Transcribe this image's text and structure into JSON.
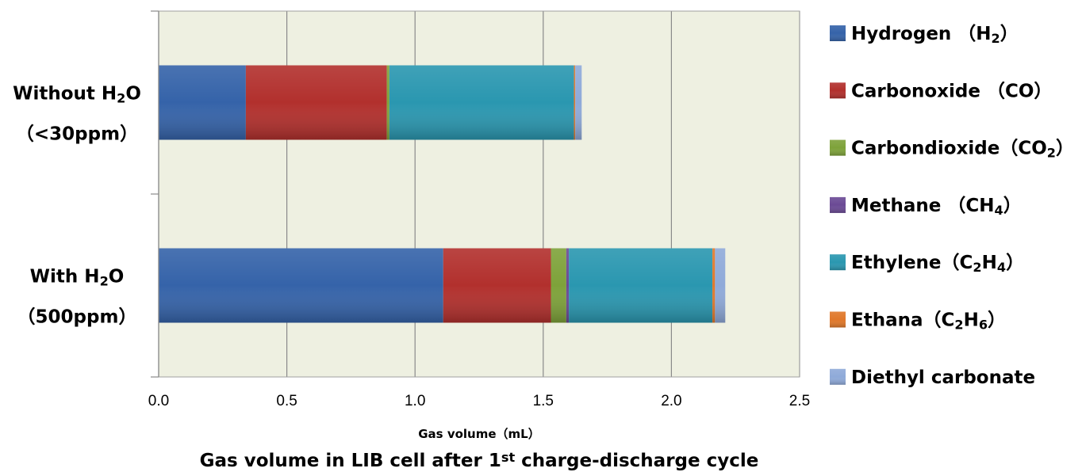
{
  "chart_data": {
    "type": "bar",
    "orientation": "horizontal",
    "stacked": true,
    "title": {
      "main": "Gas volume in LIB cell after 1",
      "sup": "st",
      "rest": " charge-discharge cycle"
    },
    "xlabel": "Gas volume（mL）",
    "xlim": [
      0,
      2.5
    ],
    "xticks": [
      0.0,
      0.5,
      1.0,
      1.5,
      2.0,
      2.5
    ],
    "xtick_labels": [
      "0.0",
      "0.5",
      "1.0",
      "1.5",
      "2.0",
      "2.5"
    ],
    "grid": true,
    "legend_position": "right",
    "plot_background": "#eef0e1",
    "categories": [
      {
        "line1": [
          {
            "t": "Without H"
          },
          {
            "t": "2",
            "sub": true
          },
          {
            "t": "O"
          }
        ],
        "line2": "（<30ppm）"
      },
      {
        "line1": [
          {
            "t": "With H"
          },
          {
            "t": "2",
            "sub": true
          },
          {
            "t": "O"
          }
        ],
        "line2": "（500ppm）"
      }
    ],
    "series": [
      {
        "name": "Hydrogen （H2）",
        "legend": [
          {
            "t": "Hydrogen （H"
          },
          {
            "t": "2",
            "sub": true
          },
          {
            "t": "）"
          }
        ],
        "color": "#3563a9",
        "values": [
          0.34,
          1.11
        ]
      },
      {
        "name": "Carbonoxide （CO）",
        "legend": [
          {
            "t": "Carbonoxide （CO）"
          }
        ],
        "color": "#b2302d",
        "values": [
          0.55,
          0.42
        ]
      },
      {
        "name": "Carbondioxide（CO2）",
        "legend": [
          {
            "t": "Carbondioxide（CO"
          },
          {
            "t": "2",
            "sub": true
          },
          {
            "t": "）"
          }
        ],
        "color": "#7ea23a",
        "values": [
          0.01,
          0.06
        ]
      },
      {
        "name": "Methane （CH4）",
        "legend": [
          {
            "t": "Methane （CH"
          },
          {
            "t": "4",
            "sub": true
          },
          {
            "t": "）"
          }
        ],
        "color": "#6b4a95",
        "values": [
          0.0,
          0.01
        ]
      },
      {
        "name": "Ethylene（C2H4）",
        "legend": [
          {
            "t": "Ethylene（C"
          },
          {
            "t": "2",
            "sub": true
          },
          {
            "t": "H"
          },
          {
            "t": "4",
            "sub": true
          },
          {
            "t": "）"
          }
        ],
        "color": "#2a97b0",
        "values": [
          0.72,
          0.56
        ]
      },
      {
        "name": "Ethana（C2H6）",
        "legend": [
          {
            "t": "Ethana（C"
          },
          {
            "t": "2",
            "sub": true
          },
          {
            "t": "H"
          },
          {
            "t": "6",
            "sub": true
          },
          {
            "t": "）"
          }
        ],
        "color": "#e0782a",
        "values": [
          0.005,
          0.01
        ]
      },
      {
        "name": "Diethyl carbonate",
        "legend": [
          {
            "t": "Diethyl carbonate"
          }
        ],
        "color": "#8faad9",
        "values": [
          0.025,
          0.04
        ]
      }
    ]
  }
}
